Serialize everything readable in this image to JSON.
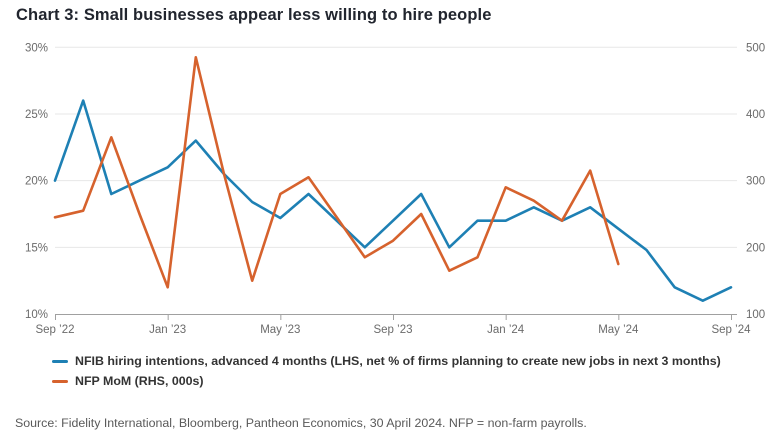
{
  "title": "Chart 3: Small businesses appear less willing to hire people",
  "source_note": "Source: Fidelity International, Bloomberg, Pantheon Economics, 30 April 2024. NFP = non-farm payrolls.",
  "colors": {
    "nfib": "#1e80b4",
    "nfp": "#d6622d",
    "grid_line": "#e7e7e7",
    "axis_line": "#a0a0a0",
    "axis_label": "#6b6b6b",
    "title_text": "#21252e",
    "legend_text": "#333333",
    "source_text": "#595959",
    "background": "#ffffff"
  },
  "legend": {
    "items": [
      {
        "id": "nfib",
        "label": "NFIB hiring intentions, advanced 4 months (LHS, net % of firms planning to create new jobs in next 3 months)"
      },
      {
        "id": "nfp",
        "label": "NFP MoM (RHS, 000s)"
      }
    ]
  },
  "chart_data": {
    "type": "line",
    "title": "Chart 3: Small businesses appear less willing to hire people",
    "x_tick_labels": [
      "Sep ’22",
      "Jan ’23",
      "May ’23",
      "Sep ’23",
      "Jan ’24",
      "May ’24",
      "Sep ’24"
    ],
    "x_tick_month_index": [
      0,
      4,
      8,
      12,
      16,
      20,
      24
    ],
    "x_total_months": 24,
    "left_axis": {
      "tick_labels": [
        "30%",
        "25%",
        "20%",
        "15%",
        "10%"
      ],
      "tick_values": [
        30,
        25,
        20,
        15,
        10
      ],
      "min": 10,
      "max": 30,
      "unit": "%"
    },
    "right_axis": {
      "tick_labels": [
        "500",
        "400",
        "300",
        "200",
        "100"
      ],
      "tick_values": [
        500,
        400,
        300,
        200,
        100
      ],
      "min": 100,
      "max": 500,
      "unit": "000s"
    },
    "grid": "horizontal-only",
    "legend_position": "bottom-left",
    "series": [
      {
        "id": "nfib",
        "name": "NFIB hiring intentions, advanced 4 months (LHS, net % of firms planning to create new jobs in next 3 months)",
        "axis": "left",
        "start_month": "Sep '22",
        "frequency": "monthly",
        "values": [
          20,
          26,
          19,
          20,
          21,
          23,
          20.5,
          18.4,
          17.2,
          19,
          17,
          15,
          17,
          19,
          15,
          17,
          17,
          18,
          17,
          18,
          16.4,
          14.8,
          12,
          11,
          12
        ]
      },
      {
        "id": "nfp",
        "name": "NFP MoM (RHS, 000s)",
        "axis": "right",
        "start_month": "Sep '22",
        "frequency": "monthly",
        "values": [
          245,
          255,
          365,
          250,
          140,
          485,
          310,
          150,
          280,
          305,
          245,
          185,
          210,
          250,
          165,
          185,
          290,
          270,
          240,
          315,
          175
        ]
      }
    ]
  }
}
